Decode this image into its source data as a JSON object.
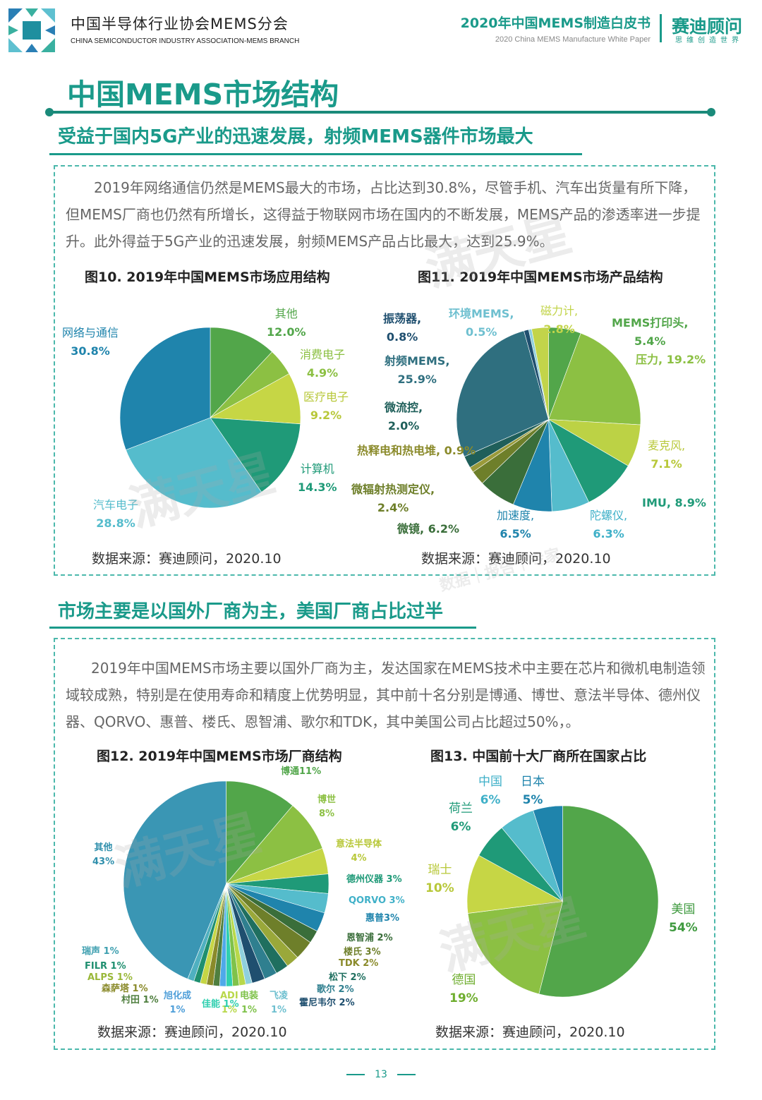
{
  "header": {
    "org_cn": "中国半导体行业协会MEMS分会",
    "org_en": "CHINA SEMICONDUCTOR INDUSTRY ASSOCIATION-MEMS BRANCH",
    "whitepaper_title": "2020年中国MEMS制造白皮书",
    "whitepaper_en": "2020 China MEMS Manufacture White Paper",
    "brand_name": "赛迪顾问",
    "brand_sub": "思维创造世界"
  },
  "page_title": "中国MEMS市场结构",
  "section1": {
    "title": "受益于国内5G产业的迅速发展，射频MEMS器件市场最大",
    "paragraph": "2019年网络通信仍然是MEMS最大的市场，占比达到30.8%，尽管手机、汽车出货量有所下降，但MEMS厂商也仍然有所增长，这得益于物联网市场在国内的不断发展，MEMS产品的渗透率进一步提升。此外得益于5G产业的迅速发展，射频MEMS产品占比最大，达到25.9%。"
  },
  "section2": {
    "title": "市场主要是以国外厂商为主，美国厂商占比过半",
    "paragraph": "2019年中国MEMS市场主要以国外厂商为主，发达国家在MEMS技术中主要在芯片和微机电制造领域较成熟，特别是在使用寿命和精度上优势明显，其中前十名分别是博通、博世、意法半导体、德州仪器、QORVO、惠普、楼氏、恩智浦、歌尔和TDK，其中美国公司占比超过50%，。"
  },
  "watermark": {
    "main": "满天星",
    "sub": "数据｜报告｜专家"
  },
  "page_number": "13",
  "colors": {
    "teal": "#1a9a8a",
    "dark_blue": "#1f7fa8",
    "light_blue": "#4fb9cf",
    "green": "#4ea24a",
    "yellow_green": "#c2d44a",
    "sea_green": "#1f9a78"
  },
  "chart_data": [
    {
      "type": "pie",
      "title": "图10. 2019年中国MEMS市场应用结构",
      "source": "数据来源：赛迪顾问，2020.10",
      "slices": [
        {
          "name": "其他",
          "value": 12.0,
          "display": "12.0%",
          "color": "#52a64a"
        },
        {
          "name": "消费电子",
          "value": 4.9,
          "display": "4.9%",
          "color": "#8cc043"
        },
        {
          "name": "医疗电子",
          "value": 9.2,
          "display": "9.2%",
          "color": "#c6d645"
        },
        {
          "name": "计算机",
          "value": 14.3,
          "display": "14.3%",
          "color": "#1f9a78"
        },
        {
          "name": "汽车电子",
          "value": 28.8,
          "display": "28.8%",
          "color": "#55bccc"
        },
        {
          "name": "网络与通信",
          "value": 30.8,
          "display": "30.8%",
          "color": "#1f84ac"
        }
      ]
    },
    {
      "type": "pie",
      "title": "图11. 2019年中国MEMS市场产品结构",
      "source": "数据来源：赛迪顾问，2020.10",
      "slices": [
        {
          "name": "MEMS打印头",
          "value": 5.4,
          "display": "5.4%",
          "color": "#52a64a"
        },
        {
          "name": "压力",
          "value": 19.2,
          "display": "19.2%",
          "color": "#8cc043"
        },
        {
          "name": "麦克风",
          "value": 7.1,
          "display": "7.1%",
          "color": "#bcd245"
        },
        {
          "name": "IMU",
          "value": 8.9,
          "display": "8.9%",
          "color": "#1f9a78"
        },
        {
          "name": "陀螺仪",
          "value": 6.3,
          "display": "6.3%",
          "color": "#55bccc"
        },
        {
          "name": "加速度",
          "value": 6.5,
          "display": "6.5%",
          "color": "#1f84ac"
        },
        {
          "name": "微镜",
          "value": 6.2,
          "display": "6.2%",
          "color": "#3a6e3a"
        },
        {
          "name": "微辐射热测定仪",
          "value": 2.4,
          "display": "2.4%",
          "color": "#6e7f2a"
        },
        {
          "name": "热释电和热电堆",
          "value": 0.9,
          "display": "0.9%",
          "color": "#9a9a3a"
        },
        {
          "name": "微流控",
          "value": 2.0,
          "display": "2.0%",
          "color": "#1f5f5a"
        },
        {
          "name": "射频MEMS",
          "value": 25.9,
          "display": "25.9%",
          "color": "#2f6f7f"
        },
        {
          "name": "振荡器",
          "value": 0.8,
          "display": "0.8%",
          "color": "#1f4f6f"
        },
        {
          "name": "环境MEMS",
          "value": 0.5,
          "display": "0.5%",
          "color": "#8fd0dd"
        },
        {
          "name": "磁力计",
          "value": 2.8,
          "display": "2.8%",
          "color": "#c2d44a"
        }
      ]
    },
    {
      "type": "pie",
      "title": "图12. 2019年中国MEMS市场厂商结构",
      "source": "数据来源：赛迪顾问，2020.10",
      "slices": [
        {
          "name": "博通",
          "value": 11,
          "display": "11%",
          "color": "#52a64a"
        },
        {
          "name": "博世",
          "value": 8,
          "display": "8%",
          "color": "#8cc043"
        },
        {
          "name": "意法半导体",
          "value": 4,
          "display": "4%",
          "color": "#c6d645"
        },
        {
          "name": "德州仪器",
          "value": 3,
          "display": "3%",
          "color": "#1f9a78"
        },
        {
          "name": "QORVO",
          "value": 3,
          "display": "3%",
          "color": "#55bccc"
        },
        {
          "name": "惠普",
          "value": 3,
          "display": "3%",
          "color": "#1f84ac"
        },
        {
          "name": "恩智浦",
          "value": 2,
          "display": "2%",
          "color": "#3a6e3a"
        },
        {
          "name": "楼氏",
          "value": 3,
          "display": "3%",
          "color": "#6e7f2a"
        },
        {
          "name": "TDK",
          "value": 2,
          "display": "2%",
          "color": "#9aa83a"
        },
        {
          "name": "松下",
          "value": 2,
          "display": "2%",
          "color": "#1f6f5f"
        },
        {
          "name": "歌尔",
          "value": 2,
          "display": "2%",
          "color": "#2f7f8f"
        },
        {
          "name": "霍尼韦尔",
          "value": 2,
          "display": "2%",
          "color": "#1f4f6f"
        },
        {
          "name": "飞凌",
          "value": 1,
          "display": "1%",
          "color": "#8fd0dd"
        },
        {
          "name": "ADI",
          "value": 1,
          "display": "1%",
          "color": "#b8d84a"
        },
        {
          "name": "电装",
          "value": 1,
          "display": "1%",
          "color": "#7fc24a"
        },
        {
          "name": "佳能",
          "value": 1,
          "display": "1%",
          "color": "#2fcfaf"
        },
        {
          "name": "旭化成",
          "value": 1,
          "display": "1%",
          "color": "#4fa9e9"
        },
        {
          "name": "村田",
          "value": 1,
          "display": "1%",
          "color": "#4f7f3f"
        },
        {
          "name": "森萨塔",
          "value": 1,
          "display": "1%",
          "color": "#8a8a2a"
        },
        {
          "name": "ALPS",
          "value": 1,
          "display": "1%",
          "color": "#c6d645"
        },
        {
          "name": "FILR",
          "value": 1,
          "display": "1%",
          "color": "#1f8f6f"
        },
        {
          "name": "瑞声",
          "value": 1,
          "display": "1%",
          "color": "#4fb0c0"
        },
        {
          "name": "其他",
          "value": 43,
          "display": "43%",
          "color": "#3a96b4"
        }
      ]
    },
    {
      "type": "pie",
      "title": "图13. 中国前十大厂商所在国家占比",
      "source": "数据来源：赛迪顾问，2020.10",
      "slices": [
        {
          "name": "美国",
          "value": 54,
          "display": "54%",
          "color": "#52a64a"
        },
        {
          "name": "德国",
          "value": 19,
          "display": "19%",
          "color": "#8cc043"
        },
        {
          "name": "瑞士",
          "value": 10,
          "display": "10%",
          "color": "#c6d645"
        },
        {
          "name": "荷兰",
          "value": 6,
          "display": "6%",
          "color": "#1f9a78"
        },
        {
          "name": "中国",
          "value": 6,
          "display": "6%",
          "color": "#55bccc"
        },
        {
          "name": "日本",
          "value": 5,
          "display": "5%",
          "color": "#1f84ac"
        }
      ]
    }
  ]
}
